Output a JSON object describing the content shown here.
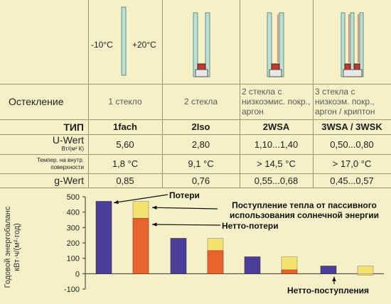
{
  "header": {
    "temp_outside": "-10°C",
    "temp_inside": "+20°C"
  },
  "rows": {
    "glazing": {
      "label": "Остекление",
      "values": [
        "1 стекло",
        "2 стекла",
        "2 стекла с низкоэмис. покр., аргон",
        "3 стекла с низкоэм. покр., аргон / криптон"
      ]
    },
    "type": {
      "label": "ТИП",
      "values": [
        "1fach",
        "2Iso",
        "2WSA",
        "3WSA / 3WSK"
      ]
    },
    "uwert": {
      "label": "U-Wert",
      "unit": "Вт/(м² К)",
      "values": [
        "5,60",
        "2,80",
        "1,10...1,40",
        "0,50...0,80"
      ]
    },
    "temp": {
      "label": "Темпер. на внутр. поверхности",
      "values": [
        "1,8 °C",
        "9,1 °C",
        "> 14,5 °C",
        "> 17,0 °C"
      ]
    },
    "gwert": {
      "label": "g-Wert",
      "values": [
        "0,85",
        "0,76",
        "0,55...0,68",
        "0,45...0,57"
      ]
    }
  },
  "chart_data": {
    "type": "bar",
    "ylabel": "Годовой энергобаланс кВт·ч/(м²·год)",
    "yticks": [
      "500",
      "400",
      "300",
      "200",
      "100",
      "0",
      "-100"
    ],
    "ylim": [
      -100,
      500
    ],
    "categories": [
      "1 стекло",
      "2 стекла",
      "2 стекла с низкоэмис. покр., аргон",
      "3 стекла с низкоэм. покр., аргон / криптон"
    ],
    "series": [
      {
        "name": "Потери",
        "color": "#4a3e9a",
        "values": [
          470,
          230,
          110,
          50
        ]
      },
      {
        "name": "Поступление тепла от пассивного использования солнечной энергии",
        "color": "#f3e26e",
        "values": [
          470,
          230,
          110,
          50
        ]
      },
      {
        "name": "Нетто-потери",
        "color": "#e8622c",
        "values": [
          360,
          150,
          25,
          -10
        ]
      }
    ],
    "annotations": [
      "Потери",
      "Поступление тепла от пассивного использования солнечной энергии",
      "Нетто-потери",
      "Нетто-поступления"
    ]
  }
}
